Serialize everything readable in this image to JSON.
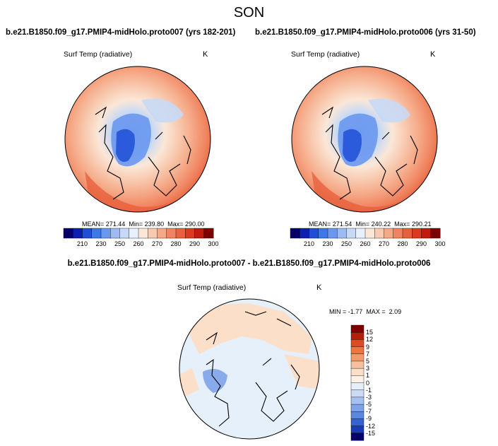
{
  "page": {
    "title": "SON",
    "diff_title": "b.e21.B1850.f09_g17.PMIP4-midHolo.proto007 - b.e21.B1850.f09_g17.PMIP4-midHolo.proto006"
  },
  "colors": {
    "abs_levels": [
      "#08006a",
      "#0d1fb0",
      "#1e4fd6",
      "#3d77e8",
      "#6a98ef",
      "#9dbaf2",
      "#c6d9f6",
      "#e8f0fb",
      "#fbe7d8",
      "#f8cbb1",
      "#f5a987",
      "#f08460",
      "#e8603c",
      "#dc3a1f",
      "#c01b0c",
      "#7c0000"
    ],
    "diff_levels": [
      "#7c0000",
      "#b51d0d",
      "#de4a22",
      "#f0743f",
      "#f39a6c",
      "#f7bf9d",
      "#fbdfc9",
      "#fdf1e6",
      "#e6f0fb",
      "#c9dbf5",
      "#a5c1ef",
      "#7ea3ea",
      "#5b86e2",
      "#3561d3",
      "#1a38b8",
      "#06006b"
    ],
    "coast": "#000000"
  },
  "chart_data": [
    {
      "type": "heatmap",
      "title": "b.e21.B1850.f09_g17.PMIP4-midHolo.proto007 (yrs 182-201)",
      "variable_label": "Surf Temp (radiative)",
      "units": "K",
      "projection": "north-polar stereographic",
      "mean_label": "MEAN=",
      "mean": "271.44",
      "min_label": "Min=",
      "min": "239.80",
      "max_label": "Max=",
      "max": "290.00",
      "colorbar_ticks": [
        "210",
        "230",
        "250",
        "260",
        "270",
        "280",
        "290",
        "300"
      ]
    },
    {
      "type": "heatmap",
      "title": "b.e21.B1850.f09_g17.PMIP4-midHolo.proto006 (yrs 31-50)",
      "variable_label": "Surf Temp (radiative)",
      "units": "K",
      "projection": "north-polar stereographic",
      "mean_label": "MEAN=",
      "mean": "271.54",
      "min_label": "Min=",
      "min": "240.22",
      "max_label": "Max=",
      "max": "290.21",
      "colorbar_ticks": [
        "210",
        "230",
        "250",
        "260",
        "270",
        "280",
        "290",
        "300"
      ]
    },
    {
      "type": "heatmap",
      "variable_label": "Surf Temp (radiative)",
      "units": "K",
      "projection": "north-polar stereographic",
      "min_label": "MIN =",
      "min": "-1.77",
      "max_label": "MAX =",
      "max": "2.09",
      "colorbar_ticks": [
        "15",
        "12",
        "9",
        "7",
        "5",
        "3",
        "1",
        "0",
        "-1",
        "-3",
        "-5",
        "-7",
        "-9",
        "-12",
        "-15"
      ]
    }
  ]
}
